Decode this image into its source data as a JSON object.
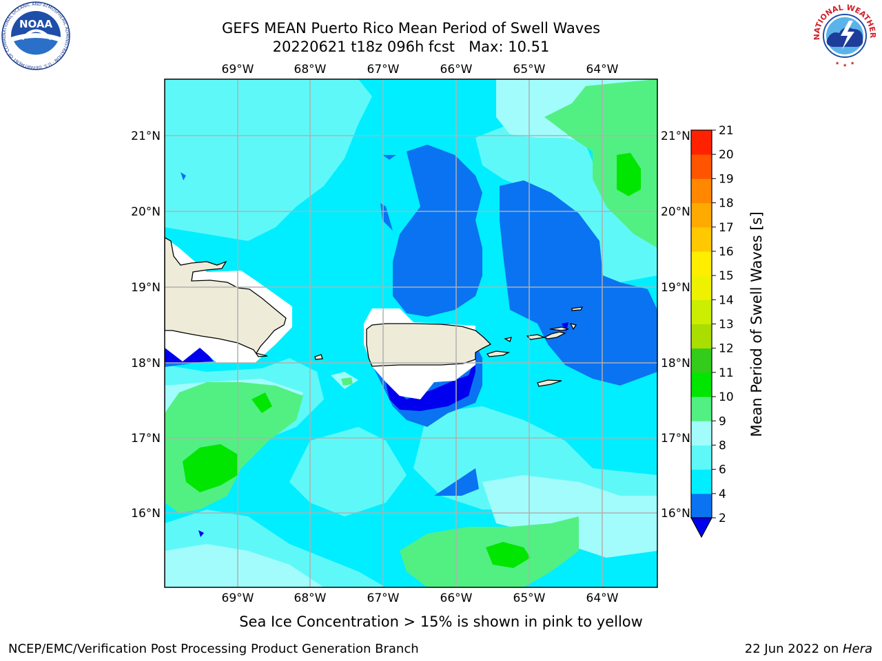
{
  "title": {
    "line1": "GEFS MEAN Puerto Rico Mean Period of Swell Waves",
    "line2": "20220621 t18z 096h fcst   Max: 10.51"
  },
  "map": {
    "lon_labels": [
      "69°W",
      "68°W",
      "67°W",
      "66°W",
      "65°W",
      "64°W"
    ],
    "lat_labels": [
      "21°N",
      "20°N",
      "19°N",
      "18°N",
      "17°N",
      "16°N"
    ],
    "land_color": "#eeecd9",
    "grid_color": "#b0b0b0"
  },
  "colorbar": {
    "label": "Mean Period of Swell Waves [s]",
    "ticks": [
      "2",
      "4",
      "6",
      "8",
      "9",
      "10",
      "11",
      "12",
      "13",
      "14",
      "15",
      "16",
      "17",
      "18",
      "19",
      "20",
      "21"
    ],
    "colors": [
      "#0000ee",
      "#0a73f2",
      "#00eeff",
      "#5ff8f8",
      "#a2fcfc",
      "#52f082",
      "#00e600",
      "#33cc1a",
      "#aadd00",
      "#ccee00",
      "#eef200",
      "#ffee00",
      "#ffc800",
      "#ffaa00",
      "#ff8800",
      "#ff5500",
      "#ff2200",
      "#ff0000"
    ]
  },
  "caption": "Sea Ice Concentration > 15% is shown in pink to yellow",
  "footer": {
    "left": "NCEP/EMC/Verification Post Processing Product Generation Branch",
    "date": "22 Jun 2022 on ",
    "host": "Hera"
  },
  "logos": {
    "noaa_text": "NOAA",
    "noaa_ring": "NATIONAL OCEANIC AND ATMOSPHERIC ADMINISTRATION · U.S. DEPARTMENT OF COMMERCE",
    "nws_ring": "NATIONAL WEATHER SERVICE"
  }
}
